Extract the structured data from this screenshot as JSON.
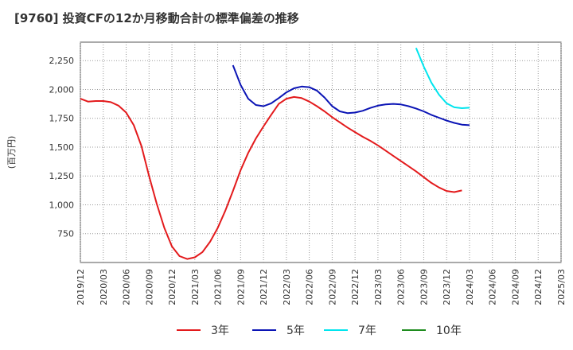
{
  "title": "[9760]  投資CFの12か月移動合計の標準偏差の推移",
  "chart_data": {
    "type": "line",
    "ylabel": "(百万円)",
    "xlabel": "",
    "ylim": [
      500,
      2410
    ],
    "yticks": [
      750,
      1000,
      1250,
      1500,
      1750,
      2000,
      2250
    ],
    "ytick_labels": [
      "750",
      "1,000",
      "1,250",
      "1,500",
      "1,750",
      "2,000",
      "2,250"
    ],
    "xticks": [
      "2019/12",
      "2020/03",
      "2020/06",
      "2020/09",
      "2020/12",
      "2021/03",
      "2021/06",
      "2021/09",
      "2021/12",
      "2022/03",
      "2022/06",
      "2022/09",
      "2022/12",
      "2023/03",
      "2023/06",
      "2023/09",
      "2023/12",
      "2024/03",
      "2024/06",
      "2024/09",
      "2024/12",
      "2025/03"
    ],
    "grid": true,
    "legend_position": "bottom",
    "series": [
      {
        "name": "3年",
        "color": "#e31a1c",
        "points": [
          [
            "2019/12",
            1920
          ],
          [
            "2020/01",
            1895
          ],
          [
            "2020/02",
            1900
          ],
          [
            "2020/03",
            1900
          ],
          [
            "2020/04",
            1890
          ],
          [
            "2020/05",
            1860
          ],
          [
            "2020/06",
            1800
          ],
          [
            "2020/07",
            1690
          ],
          [
            "2020/08",
            1510
          ],
          [
            "2020/09",
            1250
          ],
          [
            "2020/10",
            1010
          ],
          [
            "2020/11",
            800
          ],
          [
            "2020/12",
            640
          ],
          [
            "2021/01",
            555
          ],
          [
            "2021/02",
            530
          ],
          [
            "2021/03",
            545
          ],
          [
            "2021/04",
            590
          ],
          [
            "2021/05",
            680
          ],
          [
            "2021/06",
            800
          ],
          [
            "2021/07",
            950
          ],
          [
            "2021/08",
            1120
          ],
          [
            "2021/09",
            1300
          ],
          [
            "2021/10",
            1450
          ],
          [
            "2021/11",
            1575
          ],
          [
            "2021/12",
            1680
          ],
          [
            "2022/01",
            1780
          ],
          [
            "2022/02",
            1875
          ],
          [
            "2022/03",
            1920
          ],
          [
            "2022/04",
            1935
          ],
          [
            "2022/05",
            1925
          ],
          [
            "2022/06",
            1895
          ],
          [
            "2022/07",
            1855
          ],
          [
            "2022/08",
            1810
          ],
          [
            "2022/09",
            1760
          ],
          [
            "2022/10",
            1715
          ],
          [
            "2022/11",
            1670
          ],
          [
            "2022/12",
            1630
          ],
          [
            "2023/01",
            1590
          ],
          [
            "2023/02",
            1555
          ],
          [
            "2023/03",
            1515
          ],
          [
            "2023/04",
            1470
          ],
          [
            "2023/05",
            1425
          ],
          [
            "2023/06",
            1380
          ],
          [
            "2023/07",
            1335
          ],
          [
            "2023/08",
            1290
          ],
          [
            "2023/09",
            1240
          ],
          [
            "2023/10",
            1190
          ],
          [
            "2023/11",
            1150
          ],
          [
            "2023/12",
            1120
          ],
          [
            "2024/01",
            1110
          ],
          [
            "2024/02",
            1125
          ]
        ]
      },
      {
        "name": "5年",
        "color": "#0b14b5",
        "points": [
          [
            "2021/08",
            2210
          ],
          [
            "2021/09",
            2040
          ],
          [
            "2021/10",
            1920
          ],
          [
            "2021/11",
            1865
          ],
          [
            "2021/12",
            1855
          ],
          [
            "2022/01",
            1880
          ],
          [
            "2022/02",
            1925
          ],
          [
            "2022/03",
            1975
          ],
          [
            "2022/04",
            2010
          ],
          [
            "2022/05",
            2025
          ],
          [
            "2022/06",
            2020
          ],
          [
            "2022/07",
            1990
          ],
          [
            "2022/08",
            1930
          ],
          [
            "2022/09",
            1855
          ],
          [
            "2022/10",
            1810
          ],
          [
            "2022/11",
            1795
          ],
          [
            "2022/12",
            1800
          ],
          [
            "2023/01",
            1815
          ],
          [
            "2023/02",
            1840
          ],
          [
            "2023/03",
            1860
          ],
          [
            "2023/04",
            1870
          ],
          [
            "2023/05",
            1875
          ],
          [
            "2023/06",
            1870
          ],
          [
            "2023/07",
            1855
          ],
          [
            "2023/08",
            1835
          ],
          [
            "2023/09",
            1810
          ],
          [
            "2023/10",
            1780
          ],
          [
            "2023/11",
            1755
          ],
          [
            "2023/12",
            1730
          ],
          [
            "2024/01",
            1710
          ],
          [
            "2024/02",
            1695
          ],
          [
            "2024/03",
            1690
          ]
        ]
      },
      {
        "name": "7年",
        "color": "#00e5ee",
        "points": [
          [
            "2023/08",
            2360
          ],
          [
            "2023/09",
            2200
          ],
          [
            "2023/10",
            2060
          ],
          [
            "2023/11",
            1955
          ],
          [
            "2023/12",
            1880
          ],
          [
            "2024/01",
            1845
          ],
          [
            "2024/02",
            1838
          ],
          [
            "2024/03",
            1842
          ]
        ]
      },
      {
        "name": "10年",
        "color": "#1e8c1e",
        "points": []
      }
    ]
  }
}
